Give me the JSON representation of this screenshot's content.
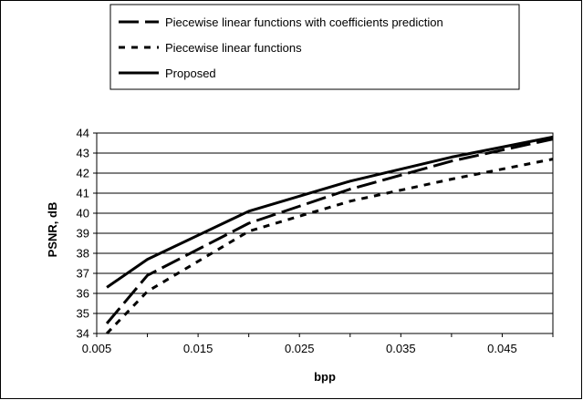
{
  "chart_data": {
    "type": "line",
    "title": "",
    "xlabel": "bpp",
    "ylabel": "PSNR, dB",
    "xlim": [
      0.005,
      0.05
    ],
    "ylim": [
      34,
      44
    ],
    "x_ticks": [
      0.005,
      0.015,
      0.025,
      0.035,
      0.045
    ],
    "x_tick_labels": [
      "0.005",
      "0.015",
      "0.025",
      "0.035",
      "0.045"
    ],
    "y_ticks": [
      34,
      35,
      36,
      37,
      38,
      39,
      40,
      41,
      42,
      43,
      44
    ],
    "y_tick_labels": [
      "34",
      "35",
      "36",
      "37",
      "38",
      "39",
      "40",
      "41",
      "42",
      "43",
      "44"
    ],
    "grid": "horizontal",
    "legend_position": "top",
    "series": [
      {
        "name": "Piecewise linear functions with coefficients prediction",
        "style": "long-dash",
        "color": "#000000",
        "x": [
          0.006,
          0.01,
          0.02,
          0.03,
          0.04,
          0.05
        ],
        "y": [
          34.5,
          36.9,
          39.5,
          41.2,
          42.6,
          43.7
        ]
      },
      {
        "name": "Piecewise linear functions",
        "style": "short-dash",
        "color": "#000000",
        "x": [
          0.006,
          0.01,
          0.02,
          0.03,
          0.04,
          0.05
        ],
        "y": [
          34.0,
          36.1,
          39.1,
          40.6,
          41.7,
          42.7
        ]
      },
      {
        "name": "Proposed",
        "style": "solid",
        "color": "#000000",
        "x": [
          0.006,
          0.01,
          0.02,
          0.03,
          0.04,
          0.05
        ],
        "y": [
          36.3,
          37.7,
          40.1,
          41.6,
          42.8,
          43.8
        ]
      }
    ]
  }
}
